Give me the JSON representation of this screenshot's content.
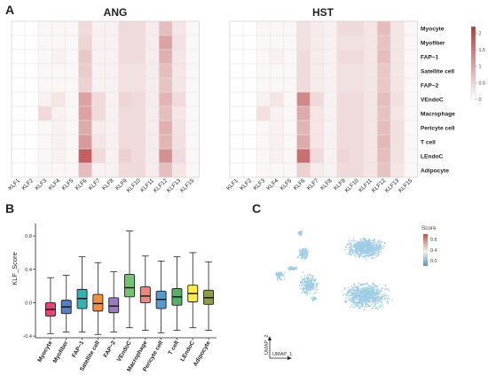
{
  "panels": {
    "a": "A",
    "b": "B",
    "c": "C"
  },
  "colors": {
    "heat_low": "#ffffff",
    "heat_high": "#b2383a",
    "umap_point": "#9fcbe4",
    "umap_low": "#6fb0d8",
    "umap_high": "#d8604f"
  },
  "chart_data": [
    {
      "id": "heatmap-ang",
      "type": "heatmap",
      "title": "ANG",
      "x": [
        "KLF1",
        "KLF2",
        "KLF3",
        "KLF4",
        "KLF5",
        "KLF6",
        "KLF7",
        "KLF8",
        "KLF9",
        "KLF10",
        "KLF11",
        "KLF12",
        "KLF13",
        "KLF15"
      ],
      "y": [
        "Myocyte",
        "Myofiber",
        "FAP−1",
        "Satellite cell",
        "FAP−2",
        "VEndoC",
        "Macrophage",
        "Pericyte cell",
        "T cell",
        "LEndoC",
        "Adipocyte"
      ],
      "values": [
        [
          0,
          0,
          0.05,
          0.05,
          0.05,
          0.3,
          0.1,
          0.1,
          0.3,
          0.3,
          0.15,
          0.6,
          0.2,
          0.05
        ],
        [
          0,
          0,
          0.05,
          0.05,
          0.05,
          0.35,
          0.1,
          0.1,
          0.3,
          0.3,
          0.15,
          0.9,
          0.25,
          0.05
        ],
        [
          0,
          0,
          0.05,
          0.1,
          0.05,
          0.5,
          0.1,
          0.1,
          0.3,
          0.3,
          0.15,
          0.75,
          0.2,
          0.05
        ],
        [
          0,
          0,
          0.05,
          0.05,
          0.05,
          0.45,
          0.1,
          0.1,
          0.25,
          0.25,
          0.15,
          0.6,
          0.2,
          0.05
        ],
        [
          0,
          0,
          0.05,
          0.05,
          0.05,
          0.4,
          0.1,
          0.1,
          0.25,
          0.25,
          0.15,
          0.55,
          0.2,
          0.05
        ],
        [
          0,
          0,
          0.1,
          0.2,
          0.05,
          0.9,
          0.3,
          0.1,
          0.35,
          0.3,
          0.15,
          0.7,
          0.3,
          0.05
        ],
        [
          0,
          0,
          0.3,
          0.1,
          0.05,
          0.9,
          0.3,
          0.1,
          0.3,
          0.3,
          0.15,
          0.6,
          0.2,
          0.05
        ],
        [
          0,
          0,
          0.05,
          0.1,
          0.05,
          0.8,
          0.15,
          0.1,
          0.3,
          0.3,
          0.15,
          0.75,
          0.25,
          0.05
        ],
        [
          0,
          0,
          0.05,
          0.1,
          0.05,
          1.0,
          0.2,
          0.1,
          0.3,
          0.3,
          0.15,
          0.7,
          0.25,
          0.05
        ],
        [
          0,
          0,
          0.05,
          0.1,
          0.05,
          1.7,
          0.3,
          0.1,
          0.4,
          0.3,
          0.15,
          1.1,
          0.3,
          0.05
        ],
        [
          0,
          0,
          0.05,
          0.05,
          0.05,
          0.6,
          0.1,
          0.1,
          0.3,
          0.3,
          0.15,
          0.6,
          0.2,
          0.05
        ]
      ],
      "colorbar": {
        "min": 0,
        "max": 2.2,
        "ticks": [
          "2",
          "1.5",
          "1",
          "0.5",
          "0"
        ],
        "tick_values": [
          2,
          1.5,
          1,
          0.5,
          0
        ]
      }
    },
    {
      "id": "heatmap-hst",
      "type": "heatmap",
      "title": "HST",
      "x": [
        "KLF1",
        "KLF2",
        "KLF3",
        "KLF4",
        "KLF5",
        "KLF6",
        "KLF7",
        "KLF8",
        "KLF9",
        "KLF10",
        "KLF11",
        "KLF12",
        "KLF13",
        "KLF15"
      ],
      "y": [
        "Myocyte",
        "Myofiber",
        "FAP−1",
        "Satellite cell",
        "FAP−2",
        "VEndoC",
        "Macrophage",
        "Pericyte cell",
        "T cell",
        "LEndoC",
        "Adipocyte"
      ],
      "values": [
        [
          0,
          0,
          0.05,
          0.05,
          0.05,
          0.25,
          0.15,
          0.1,
          0.3,
          0.3,
          0.2,
          0.6,
          0.2,
          0.05
        ],
        [
          0,
          0,
          0.05,
          0.05,
          0.05,
          0.25,
          0.15,
          0.1,
          0.25,
          0.25,
          0.2,
          0.55,
          0.2,
          0.05
        ],
        [
          0,
          0,
          0.05,
          0.1,
          0.05,
          0.3,
          0.15,
          0.1,
          0.3,
          0.3,
          0.2,
          0.6,
          0.2,
          0.05
        ],
        [
          0,
          0,
          0.05,
          0.05,
          0.05,
          0.3,
          0.15,
          0.1,
          0.25,
          0.25,
          0.2,
          0.5,
          0.2,
          0.05
        ],
        [
          0,
          0,
          0.05,
          0.05,
          0.05,
          0.3,
          0.15,
          0.1,
          0.25,
          0.25,
          0.2,
          0.5,
          0.2,
          0.05
        ],
        [
          0,
          0,
          0.1,
          0.2,
          0.05,
          1.2,
          0.3,
          0.1,
          0.3,
          0.3,
          0.2,
          0.6,
          0.25,
          0.05
        ],
        [
          0,
          0,
          0.25,
          0.1,
          0.05,
          0.8,
          0.2,
          0.1,
          0.3,
          0.3,
          0.2,
          0.55,
          0.2,
          0.05
        ],
        [
          0,
          0,
          0.05,
          0.1,
          0.05,
          0.7,
          0.2,
          0.1,
          0.3,
          0.3,
          0.2,
          0.6,
          0.25,
          0.05
        ],
        [
          0,
          0,
          0.05,
          0.1,
          0.05,
          0.8,
          0.2,
          0.1,
          0.3,
          0.3,
          0.2,
          0.65,
          0.25,
          0.05
        ],
        [
          0,
          0,
          0.05,
          0.1,
          0.05,
          1.5,
          0.3,
          0.1,
          0.35,
          0.3,
          0.2,
          0.6,
          0.25,
          0.05
        ],
        [
          0,
          0,
          0.05,
          0.05,
          0.05,
          0.4,
          0.15,
          0.1,
          0.3,
          0.3,
          0.2,
          0.55,
          0.2,
          0.05
        ]
      ]
    },
    {
      "id": "boxplot",
      "type": "box",
      "ylabel": "KLF_Score",
      "ylim": [
        -0.42,
        0.95
      ],
      "yticks": [
        -0.4,
        0.0,
        0.4,
        0.8
      ],
      "ytick_labels": [
        "-0.4",
        "0.0",
        "0.4",
        "0.8"
      ],
      "categories": [
        "Myocyte",
        "Myofiber",
        "FAP−1",
        "Satellite cell",
        "FAP−2",
        "VEndoC",
        "Macrophage",
        "Pericyte cell",
        "T cell",
        "LEndoC",
        "Adipocyte"
      ],
      "colors": [
        "#e0245e",
        "#3a6bb5",
        "#12a3a3",
        "#f07a24",
        "#8a63b8",
        "#5cb85c",
        "#e8746a",
        "#3a86c6",
        "#3aa14c",
        "#ffea2a",
        "#7a8a2a"
      ],
      "stats": [
        {
          "min": -0.37,
          "q1": -0.16,
          "median": -0.08,
          "q3": 0.0,
          "max": 0.3
        },
        {
          "min": -0.35,
          "q1": -0.13,
          "median": -0.05,
          "q3": 0.03,
          "max": 0.33
        },
        {
          "min": -0.35,
          "q1": -0.07,
          "median": 0.05,
          "q3": 0.16,
          "max": 0.55
        },
        {
          "min": -0.38,
          "q1": -0.1,
          "median": -0.01,
          "q3": 0.1,
          "max": 0.48
        },
        {
          "min": -0.35,
          "q1": -0.12,
          "median": -0.04,
          "q3": 0.06,
          "max": 0.37
        },
        {
          "min": -0.3,
          "q1": 0.07,
          "median": 0.18,
          "q3": 0.34,
          "max": 0.86
        },
        {
          "min": -0.33,
          "q1": 0.0,
          "median": 0.08,
          "q3": 0.19,
          "max": 0.56
        },
        {
          "min": -0.36,
          "q1": -0.07,
          "median": 0.04,
          "q3": 0.14,
          "max": 0.5
        },
        {
          "min": -0.33,
          "q1": -0.03,
          "median": 0.07,
          "q3": 0.17,
          "max": 0.55
        },
        {
          "min": -0.3,
          "q1": 0.01,
          "median": 0.11,
          "q3": 0.21,
          "max": 0.6
        },
        {
          "min": -0.33,
          "q1": -0.02,
          "median": 0.06,
          "q3": 0.15,
          "max": 0.49
        }
      ]
    },
    {
      "id": "umap",
      "type": "scatter",
      "xlabel": "UMAP_1",
      "ylabel": "UMAP_2",
      "legend_title": "Score",
      "legend_ticks": [
        "0.8",
        "0.4",
        "0.0"
      ],
      "legend_tick_values": [
        0.8,
        0.4,
        0.0
      ],
      "color_range": [
        -0.2,
        1.0
      ]
    }
  ]
}
